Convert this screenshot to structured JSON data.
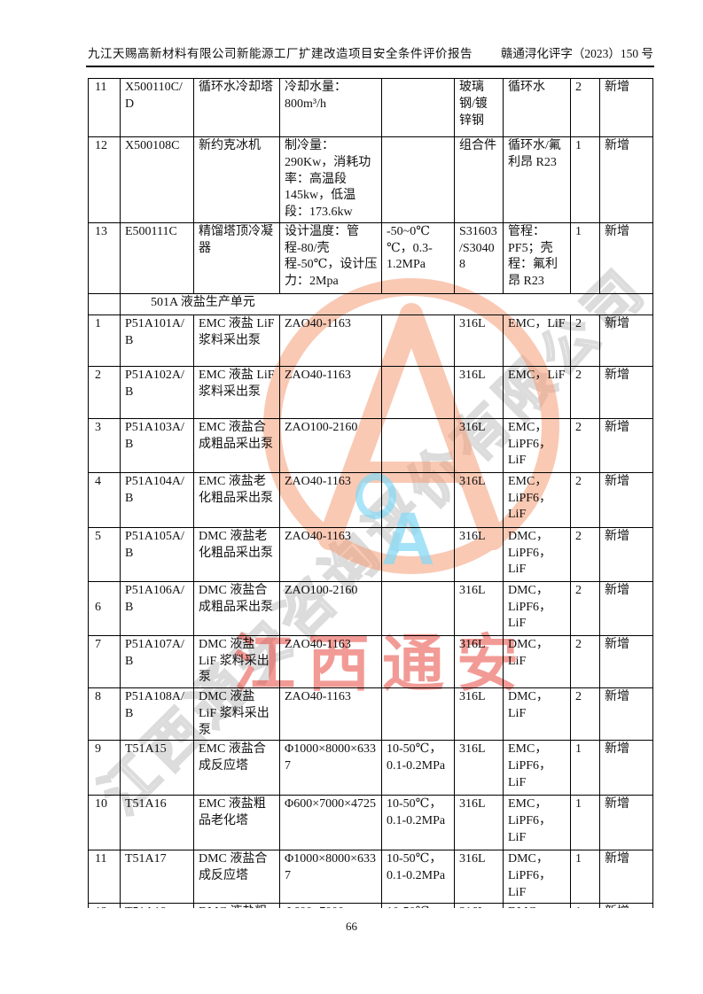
{
  "header": {
    "left": "九江天赐高新材料有限公司新能源工厂扩建改造项目安全条件评价报告",
    "right": "赣通浔化评字（2023）150 号"
  },
  "footer": {
    "page_number": "66"
  },
  "watermarks": {
    "diagonal_text": "江西通安咨询评价有限公司",
    "stamp_text": "江西通安",
    "blue_letter": "A",
    "colors": {
      "orange": "#f59d77",
      "red": "#e6382e",
      "gray": "#bfbfbf",
      "blue": "#86d9f5"
    }
  },
  "table": {
    "section_header": "501A 液盐生产单元",
    "section1_rows": [
      {
        "no": "11",
        "tag": "X500110C/D",
        "name": "循环水冷却塔",
        "spec": "冷却水量：800m³/h",
        "params": "",
        "material": "玻璃钢/镀锌钢",
        "medium": "循环水",
        "qty": "2",
        "remark": "新增"
      },
      {
        "no": "12",
        "tag": "X500108C",
        "name": "新约克冰机",
        "spec": "制冷量：290Kw，消耗功率：高温段 145kw，低温段：173.6kw",
        "params": "",
        "material": "组合件",
        "medium": "循环水/氟利昂 R23",
        "qty": "1",
        "remark": "新增"
      },
      {
        "no": "13",
        "tag": "E500111C",
        "name": "精馏塔顶冷凝器",
        "spec": "设计温度：管程-80/壳程-50℃，设计压力：2Mpa",
        "params": "-50~0℃℃，0.3-1.2MPa",
        "material": "S31603/S30408",
        "medium": "管程：PF5；壳程：氟利昂 R23",
        "qty": "1",
        "remark": "新增"
      }
    ],
    "section2_rows": [
      {
        "no": "1",
        "tag": "P51A101A/B",
        "name": "EMC 液盐 LiF 浆料采出泵",
        "spec": "ZAO40-1163",
        "params": "",
        "material": "316L",
        "medium": "EMC，LiF",
        "qty": "2",
        "remark": "新增"
      },
      {
        "no": "2",
        "tag": "P51A102A/B",
        "name": "EMC 液盐 LiF 浆料采出泵",
        "spec": "ZAO40-1163",
        "params": "",
        "material": "316L",
        "medium": "EMC，LiF",
        "qty": "2",
        "remark": "新增"
      },
      {
        "no": "3",
        "tag": "P51A103A/B",
        "name": "EMC 液盐合成粗品采出泵",
        "spec": "ZAO100-2160",
        "params": "",
        "material": "316L",
        "medium": "EMC，LiPF6，LiF",
        "qty": "2",
        "remark": "新增"
      },
      {
        "no": "4",
        "tag": "P51A104A/B",
        "name": "EMC 液盐老化粗品采出泵",
        "spec": "ZAO40-1163",
        "params": "",
        "material": "316L",
        "medium": "EMC，LiPF6，LiF",
        "qty": "2",
        "remark": "新增"
      },
      {
        "no": "5",
        "tag": "P51A105A/B",
        "name": "DMC 液盐老化粗品采出泵",
        "spec": "ZAO40-1163",
        "params": "",
        "material": "316L",
        "medium": "DMC，LiPF6，LiF",
        "qty": "2",
        "remark": "新增"
      },
      {
        "no": "6",
        "tag": "P51A106A/B",
        "name": "DMC 液盐合成粗品采出泵",
        "spec": "ZAO100-2160",
        "params": "",
        "material": "316L",
        "medium": "DMC，LiPF6，LiF",
        "qty": "2",
        "remark": "新增"
      },
      {
        "no": "7",
        "tag": "P51A107A/B",
        "name": "DMC 液盐 LiF 浆料采出泵",
        "spec": "ZAO40-1163",
        "params": "",
        "material": "316L",
        "medium": "DMC，LiF",
        "qty": "2",
        "remark": "新增"
      },
      {
        "no": "8",
        "tag": "P51A108A/B",
        "name": "DMC 液盐 LiF 浆料采出泵",
        "spec": "ZAO40-1163",
        "params": "",
        "material": "316L",
        "medium": "DMC，LiF",
        "qty": "2",
        "remark": "新增"
      },
      {
        "no": "9",
        "tag": "T51A15",
        "name": "EMC 液盐合成反应塔",
        "spec": "Φ1000×8000×6337",
        "params": "10-50℃，0.1-0.2MPa",
        "material": "316L",
        "medium": "EMC，LiPF6，LiF",
        "qty": "1",
        "remark": "新增"
      },
      {
        "no": "10",
        "tag": "T51A16",
        "name": "EMC 液盐粗品老化塔",
        "spec": "Φ600×7000×4725",
        "params": "10-50℃，0.1-0.2MPa",
        "material": "316L",
        "medium": "EMC，LiPF6，LiF",
        "qty": "1",
        "remark": "新增"
      },
      {
        "no": "11",
        "tag": "T51A17",
        "name": "DMC 液盐合成反应塔",
        "spec": "Φ1000×8000×6337",
        "params": "10-50℃，0.1-0.2MPa",
        "material": "316L",
        "medium": "DMC，LiPF6，LiF",
        "qty": "1",
        "remark": "新增"
      },
      {
        "no": "12",
        "tag": "T51A18",
        "name": "DMC 液盐粗",
        "spec": "Φ600×7000×",
        "params": "10-50℃，",
        "material": "316L",
        "medium": "DMC，",
        "qty": "1",
        "remark": "新增"
      }
    ]
  }
}
